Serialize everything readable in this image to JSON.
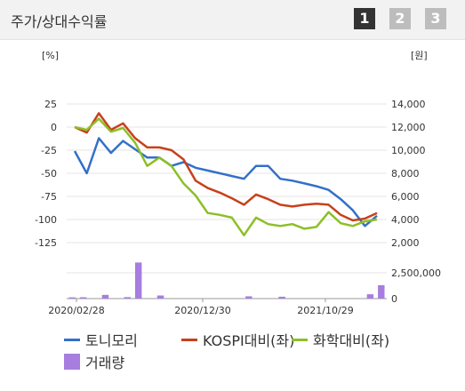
{
  "header": {
    "title": "주가/상대수익률",
    "pages": [
      "1",
      "2",
      "3"
    ],
    "active_page": "1"
  },
  "colors": {
    "stock": "#3370c8",
    "kospi": "#c8401a",
    "sector": "#8cbf26",
    "volume": "#a77de0"
  },
  "legend": {
    "stock": "토니모리",
    "kospi": "KOSPI대비(좌)",
    "sector": "화학대비(좌)",
    "volume": "거래량"
  },
  "chart_data": {
    "type": "line",
    "left_axis_label": "[%]",
    "right_axis_label": "[원]",
    "left_ticks": [
      "25",
      "0",
      "-25",
      "-50",
      "-75",
      "-100",
      "-125"
    ],
    "right_ticks": [
      "14,000",
      "12,000",
      "10,000",
      "8,000",
      "6,000",
      "4,000",
      "2,000"
    ],
    "volume_ticks": [
      "2,500,000",
      "0"
    ],
    "x_tick_labels": [
      "2020/02/28",
      "2020/12/30",
      "2021/10/29"
    ],
    "ylim_left": [
      -125,
      25
    ],
    "ylim_right": [
      2000,
      14000
    ],
    "series": [
      {
        "name": "토니모리",
        "key": "stock",
        "values": [
          -26,
          -50,
          -12,
          -28,
          -15,
          -24,
          -33,
          -33,
          -42,
          -38,
          -44,
          -47,
          -50,
          -53,
          -56,
          -42,
          -42,
          -56,
          -58,
          -61,
          -64,
          -68,
          -78,
          -90,
          -107,
          -96
        ]
      },
      {
        "name": "KOSPI대비(좌)",
        "key": "kospi",
        "values": [
          0,
          -6,
          15,
          -3,
          4,
          -12,
          -22,
          -22,
          -25,
          -35,
          -58,
          -66,
          -71,
          -77,
          -84,
          -73,
          -78,
          -84,
          -86,
          -84,
          -83,
          -84,
          -95,
          -101,
          -99,
          -93
        ]
      },
      {
        "name": "화학대비(좌)",
        "key": "sector",
        "values": [
          0,
          -3,
          9,
          -5,
          -1,
          -17,
          -42,
          -33,
          -42,
          -61,
          -74,
          -93,
          -95,
          -98,
          -117,
          -98,
          -105,
          -107,
          -105,
          -110,
          -108,
          -92,
          -104,
          -107,
          -102,
          -100
        ]
      }
    ],
    "volume": {
      "name": "거래량",
      "ymax": 2500000,
      "bars": [
        {
          "i": 0,
          "v": 120000
        },
        {
          "i": 1,
          "v": 130000
        },
        {
          "i": 3,
          "v": 360000
        },
        {
          "i": 5,
          "v": 140000
        },
        {
          "i": 6,
          "v": 3500000
        },
        {
          "i": 8,
          "v": 300000
        },
        {
          "i": 16,
          "v": 220000
        },
        {
          "i": 19,
          "v": 180000
        },
        {
          "i": 27,
          "v": 420000
        },
        {
          "i": 28,
          "v": 1300000
        }
      ],
      "count": 29
    }
  }
}
